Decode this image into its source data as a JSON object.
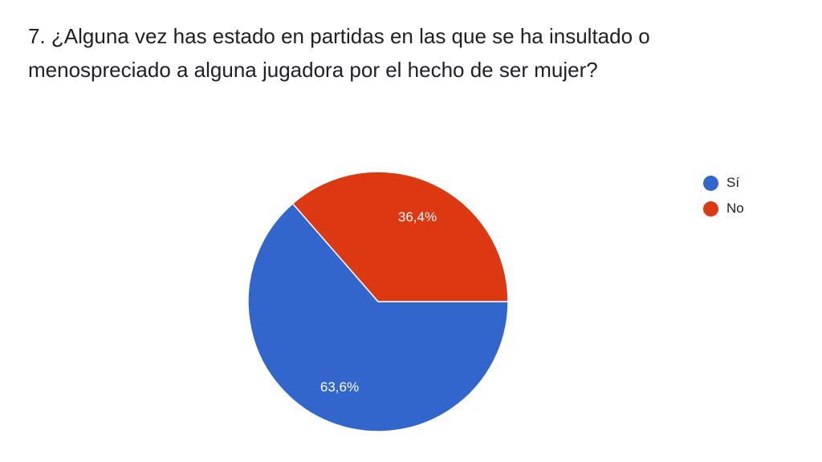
{
  "title": "7. ¿Alguna vez has estado en partidas en las que se ha insultado o menospreciado a alguna jugadora por el hecho de ser mujer?",
  "chart_data": {
    "type": "pie",
    "title": "7. ¿Alguna vez has estado en partidas en las que se ha insultado o menospreciado a alguna jugadora por el hecho de ser mujer?",
    "categories": [
      "Sí",
      "No"
    ],
    "values": [
      63.6,
      36.4
    ],
    "labels": [
      "63,6%",
      "36,4%"
    ],
    "colors": [
      "#3366cc",
      "#dc3912"
    ],
    "legend_position": "right"
  },
  "legend": [
    {
      "label": "Sí",
      "color": "#3366cc"
    },
    {
      "label": "No",
      "color": "#dc3912"
    }
  ],
  "slice_labels": {
    "si": "63,6%",
    "no": "36,4%"
  }
}
